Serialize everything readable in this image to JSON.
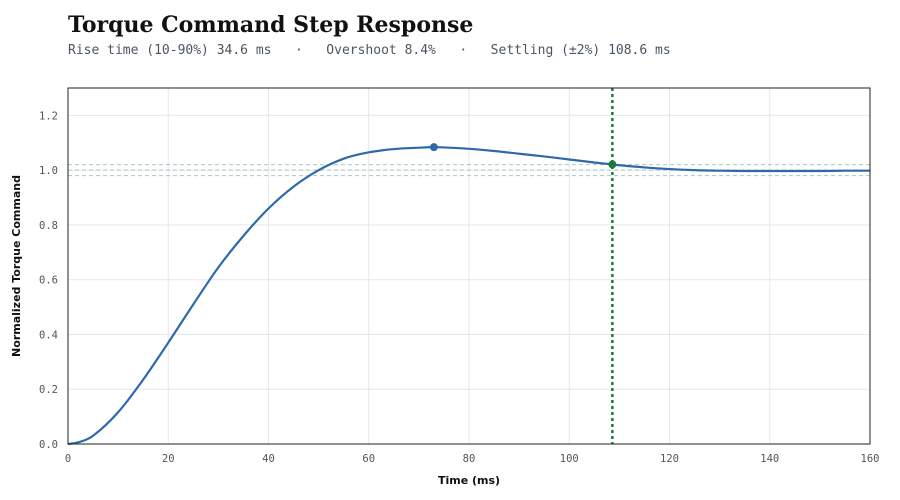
{
  "header": {
    "title": "Torque Command Step Response",
    "metrics": [
      "Rise time (10-90%) 34.6 ms",
      "Overshoot 8.4%",
      "Settling (±2%) 108.6 ms"
    ],
    "separator": "·"
  },
  "chart_data": {
    "type": "line",
    "title": "Torque Command Step Response",
    "xlabel": "Time (ms)",
    "ylabel": "Normalized Torque Command",
    "xlim": [
      0,
      160
    ],
    "ylim": [
      0,
      1.3
    ],
    "xticks": [
      0,
      20,
      40,
      60,
      80,
      100,
      120,
      140,
      160
    ],
    "yticks": [
      0.0,
      0.2,
      0.4,
      0.6,
      0.8,
      1.0,
      1.2
    ],
    "ytick_labels": [
      "0.0",
      "0.2",
      "0.4",
      "0.6",
      "0.8",
      "1.0",
      "1.2"
    ],
    "grid": true,
    "tolerance_band": [
      0.98,
      1.0,
      1.02
    ],
    "series": [
      {
        "color": "#2f6aa8",
        "x": [
          0,
          2,
          5,
          10,
          15,
          20,
          25,
          30,
          35,
          40,
          45,
          50,
          55,
          60,
          65,
          70,
          73,
          75,
          80,
          85,
          90,
          95,
          100,
          105,
          108.6,
          110,
          115,
          120,
          125,
          130,
          135,
          140,
          145,
          150,
          155,
          160
        ],
        "y": [
          0.0,
          0.006,
          0.03,
          0.116,
          0.235,
          0.37,
          0.51,
          0.645,
          0.76,
          0.86,
          0.94,
          1.0,
          1.042,
          1.065,
          1.077,
          1.082,
          1.084,
          1.083,
          1.078,
          1.07,
          1.06,
          1.05,
          1.039,
          1.028,
          1.021,
          1.018,
          1.01,
          1.004,
          1.0,
          0.998,
          0.997,
          0.997,
          0.997,
          0.997,
          0.998,
          0.998
        ]
      }
    ],
    "markers": [
      {
        "label": "peak",
        "x": 73,
        "y": 1.084,
        "color": "#2f6aa8"
      },
      {
        "label": "settling",
        "x": 108.6,
        "y": 1.021,
        "color": "#1a7a3c"
      }
    ],
    "vlines": [
      {
        "x": 108.6,
        "color": "#1a7a3c",
        "style": "dotted"
      }
    ]
  }
}
